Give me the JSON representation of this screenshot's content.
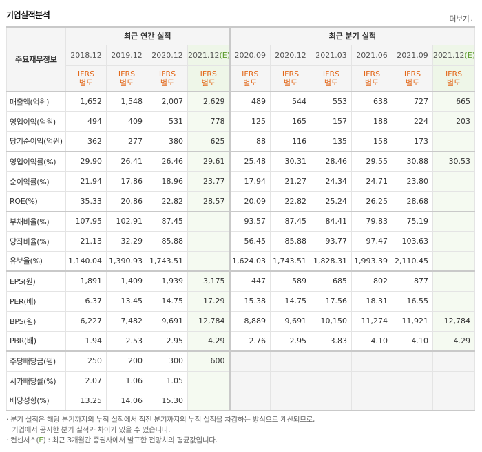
{
  "section_title": "기업실적분석",
  "more_label": "더보기",
  "corner_label": "주요재무정보",
  "group_annual": "최근 연간 실적",
  "group_quarter": "최근 분기 실적",
  "periods": [
    "2018.12",
    "2019.12",
    "2020.12",
    "2021.12(E)",
    "2020.09",
    "2020.12",
    "2021.03",
    "2021.06",
    "2021.09",
    "2021.12(E)"
  ],
  "ifrs_label": [
    "IFRS",
    "별도"
  ],
  "rows": [
    {
      "label": "매출액(억원)",
      "values": [
        "1,652",
        "1,548",
        "2,007",
        "2,629",
        "489",
        "544",
        "553",
        "638",
        "727",
        "665"
      ]
    },
    {
      "label": "영업이익(억원)",
      "values": [
        "494",
        "409",
        "531",
        "778",
        "125",
        "165",
        "157",
        "188",
        "224",
        "203"
      ]
    },
    {
      "label": "당기순이익(억원)",
      "values": [
        "362",
        "277",
        "380",
        "625",
        "88",
        "116",
        "135",
        "158",
        "173",
        ""
      ]
    },
    {
      "label": "영업이익률(%)",
      "values": [
        "29.90",
        "26.41",
        "26.46",
        "29.61",
        "25.48",
        "30.31",
        "28.46",
        "29.55",
        "30.88",
        "30.53"
      ]
    },
    {
      "label": "순이익률(%)",
      "values": [
        "21.94",
        "17.86",
        "18.96",
        "23.77",
        "17.94",
        "21.27",
        "24.34",
        "24.71",
        "23.80",
        ""
      ]
    },
    {
      "label": "ROE(%)",
      "values": [
        "35.33",
        "20.86",
        "22.82",
        "28.57",
        "20.09",
        "22.82",
        "25.24",
        "26.25",
        "28.68",
        ""
      ]
    },
    {
      "label": "부채비율(%)",
      "values": [
        "107.95",
        "102.91",
        "87.45",
        "",
        "93.57",
        "87.45",
        "84.41",
        "79.83",
        "75.19",
        ""
      ]
    },
    {
      "label": "당좌비율(%)",
      "values": [
        "21.13",
        "32.29",
        "85.88",
        "",
        "56.45",
        "85.88",
        "93.77",
        "97.47",
        "103.63",
        ""
      ]
    },
    {
      "label": "유보율(%)",
      "values": [
        "1,140.04",
        "1,390.93",
        "1,743.51",
        "",
        "1,624.03",
        "1,743.51",
        "1,828.31",
        "1,993.39",
        "2,110.45",
        ""
      ]
    },
    {
      "label": "EPS(원)",
      "values": [
        "1,891",
        "1,409",
        "1,939",
        "3,175",
        "447",
        "589",
        "685",
        "802",
        "877",
        ""
      ]
    },
    {
      "label": "PER(배)",
      "values": [
        "6.37",
        "13.45",
        "14.75",
        "17.29",
        "15.38",
        "14.75",
        "17.56",
        "18.31",
        "16.55",
        ""
      ]
    },
    {
      "label": "BPS(원)",
      "values": [
        "6,227",
        "7,482",
        "9,691",
        "12,784",
        "8,889",
        "9,691",
        "10,150",
        "11,274",
        "11,921",
        "12,784"
      ]
    },
    {
      "label": "PBR(배)",
      "values": [
        "1.94",
        "2.53",
        "2.95",
        "4.29",
        "2.76",
        "2.95",
        "3.83",
        "4.10",
        "4.10",
        "4.29"
      ]
    },
    {
      "label": "주당배당금(원)",
      "values": [
        "250",
        "200",
        "300",
        "600",
        "",
        "",
        "",
        "",
        "",
        ""
      ]
    },
    {
      "label": "시가배당률(%)",
      "values": [
        "2.07",
        "1.06",
        "1.05",
        "",
        "",
        "",
        "",
        "",
        "",
        ""
      ]
    },
    {
      "label": "배당성향(%)",
      "values": [
        "13.25",
        "14.06",
        "15.30",
        "",
        "",
        "",
        "",
        "",
        "",
        ""
      ]
    }
  ],
  "notes": {
    "line1": "· 분기 실적은 해당 분기까지의 누적 실적에서 직전 분기까지의 누적 실적을 차감하는 방식으로 계산되므로,",
    "line2": "기업에서 공시한 분기 실적과 차이가 있을 수 있습니다.",
    "line3_prefix": "· 컨센서스(",
    "line3_e": "E",
    "line3_suffix": ") : 최근 3개월간 증권사에서 발표한 전망치의 평균값입니다."
  }
}
